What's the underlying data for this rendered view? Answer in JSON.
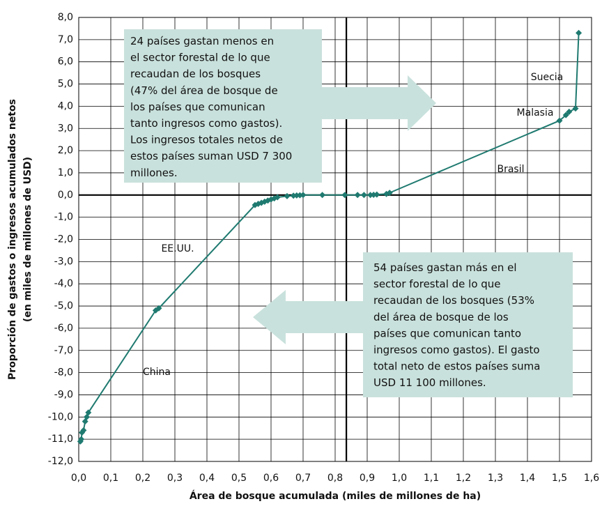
{
  "chart_data": {
    "type": "line",
    "x": [
      0.005,
      0.008,
      0.01,
      0.015,
      0.02,
      0.025,
      0.03,
      0.24,
      0.25,
      0.55,
      0.56,
      0.57,
      0.58,
      0.59,
      0.6,
      0.61,
      0.62,
      0.65,
      0.67,
      0.68,
      0.69,
      0.7,
      0.76,
      0.83,
      0.87,
      0.89,
      0.91,
      0.92,
      0.93,
      0.96,
      0.97,
      1.5,
      1.52,
      1.53,
      1.55,
      1.56
    ],
    "values": [
      -11.1,
      -11.0,
      -10.7,
      -10.6,
      -10.2,
      -10.0,
      -9.8,
      -5.2,
      -5.1,
      -0.45,
      -0.4,
      -0.35,
      -0.3,
      -0.25,
      -0.2,
      -0.15,
      -0.1,
      -0.05,
      -0.03,
      -0.02,
      -0.01,
      0,
      0,
      0,
      0,
      0,
      0,
      0.01,
      0.02,
      0.05,
      0.1,
      3.35,
      3.6,
      3.75,
      3.9,
      7.3
    ],
    "color": "#1f7a70",
    "xlim": [
      0,
      1.6
    ],
    "xticks": [
      {
        "value": 0,
        "label": "0,0"
      },
      {
        "value": 0.1,
        "label": "0,1"
      },
      {
        "value": 0.2,
        "label": "0,2"
      },
      {
        "value": 0.3,
        "label": "0,3"
      },
      {
        "value": 0.4,
        "label": "0,4"
      },
      {
        "value": 0.5,
        "label": "0,5"
      },
      {
        "value": 0.6,
        "label": "0,6"
      },
      {
        "value": 0.7,
        "label": "0,7"
      },
      {
        "value": 0.8,
        "label": "0,8"
      },
      {
        "value": 0.9,
        "label": "0,9"
      },
      {
        "value": 1.0,
        "label": "1,0"
      },
      {
        "value": 1.1,
        "label": "1,1"
      },
      {
        "value": 1.2,
        "label": "1,2"
      },
      {
        "value": 1.3,
        "label": "1,3"
      },
      {
        "value": 1.4,
        "label": "1,4"
      },
      {
        "value": 1.5,
        "label": "1,5"
      },
      {
        "value": 1.6,
        "label": "1,6"
      }
    ],
    "ylim": [
      -12,
      8
    ],
    "yticks": [
      {
        "value": 8,
        "label": "8,0"
      },
      {
        "value": 7,
        "label": "7,0"
      },
      {
        "value": 6,
        "label": "6,0"
      },
      {
        "value": 5,
        "label": "5,0"
      },
      {
        "value": 4,
        "label": "4,0"
      },
      {
        "value": 3,
        "label": "3,0"
      },
      {
        "value": 2,
        "label": "2,0"
      },
      {
        "value": 1,
        "label": "1,0"
      },
      {
        "value": 0,
        "label": "0,0"
      },
      {
        "value": -1,
        "label": "-1,0"
      },
      {
        "value": -2,
        "label": "-2,0"
      },
      {
        "value": -3,
        "label": "-3,0"
      },
      {
        "value": -4,
        "label": "-4,0"
      },
      {
        "value": -5,
        "label": "-5,0"
      },
      {
        "value": -6,
        "label": "-6,0"
      },
      {
        "value": -7,
        "label": "-7,0"
      },
      {
        "value": -8,
        "label": "-8,0"
      },
      {
        "value": -9,
        "label": "-9,0"
      },
      {
        "value": -10,
        "label": "-10,0"
      },
      {
        "value": -11,
        "label": "-11,0"
      },
      {
        "value": -12,
        "label": "-12,0"
      }
    ],
    "grid": true,
    "reference_x": 0.835,
    "x_label": "Área de bosque acumulada (miles de millones de ha)",
    "y_label": [
      "Proporción de gastos o ingresos acumulados netos",
      "(en miles de millones de USD)"
    ],
    "annotations": [
      "Suecia",
      "Malasia",
      "Brasil",
      "EE.UU.",
      "China"
    ],
    "text_boxes": [
      [
        "24 países gastan menos en",
        "el sector forestal de lo que",
        "recaudan de los bosques",
        "(47% del área de bosque de",
        "los países que comunican",
        "tanto ingresos como gastos).",
        "Los ingresos totales netos de",
        "estos países suman USD 7 300",
        "millones."
      ],
      [
        "54 países gastan más en el",
        "sector forestal de lo que",
        "recaudan de los bosques (53%",
        "del área de bosque de los",
        "países que comunican tanto",
        "ingresos como gastos). El gasto",
        "total neto de estos países suma",
        "USD 11 100 millones."
      ]
    ]
  }
}
